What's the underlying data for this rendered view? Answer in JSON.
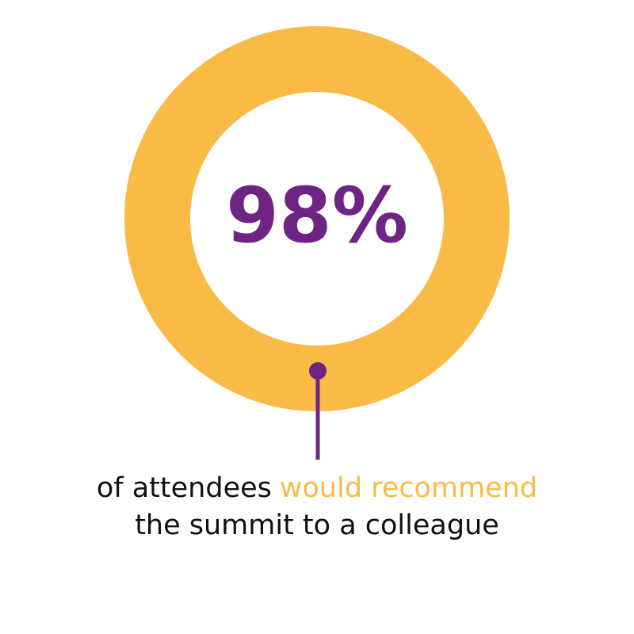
{
  "stat": "98%",
  "caption": {
    "line1_start": "of attendees",
    "line1_highlight": "would recommend",
    "line2": "the summit to a colleague"
  }
}
